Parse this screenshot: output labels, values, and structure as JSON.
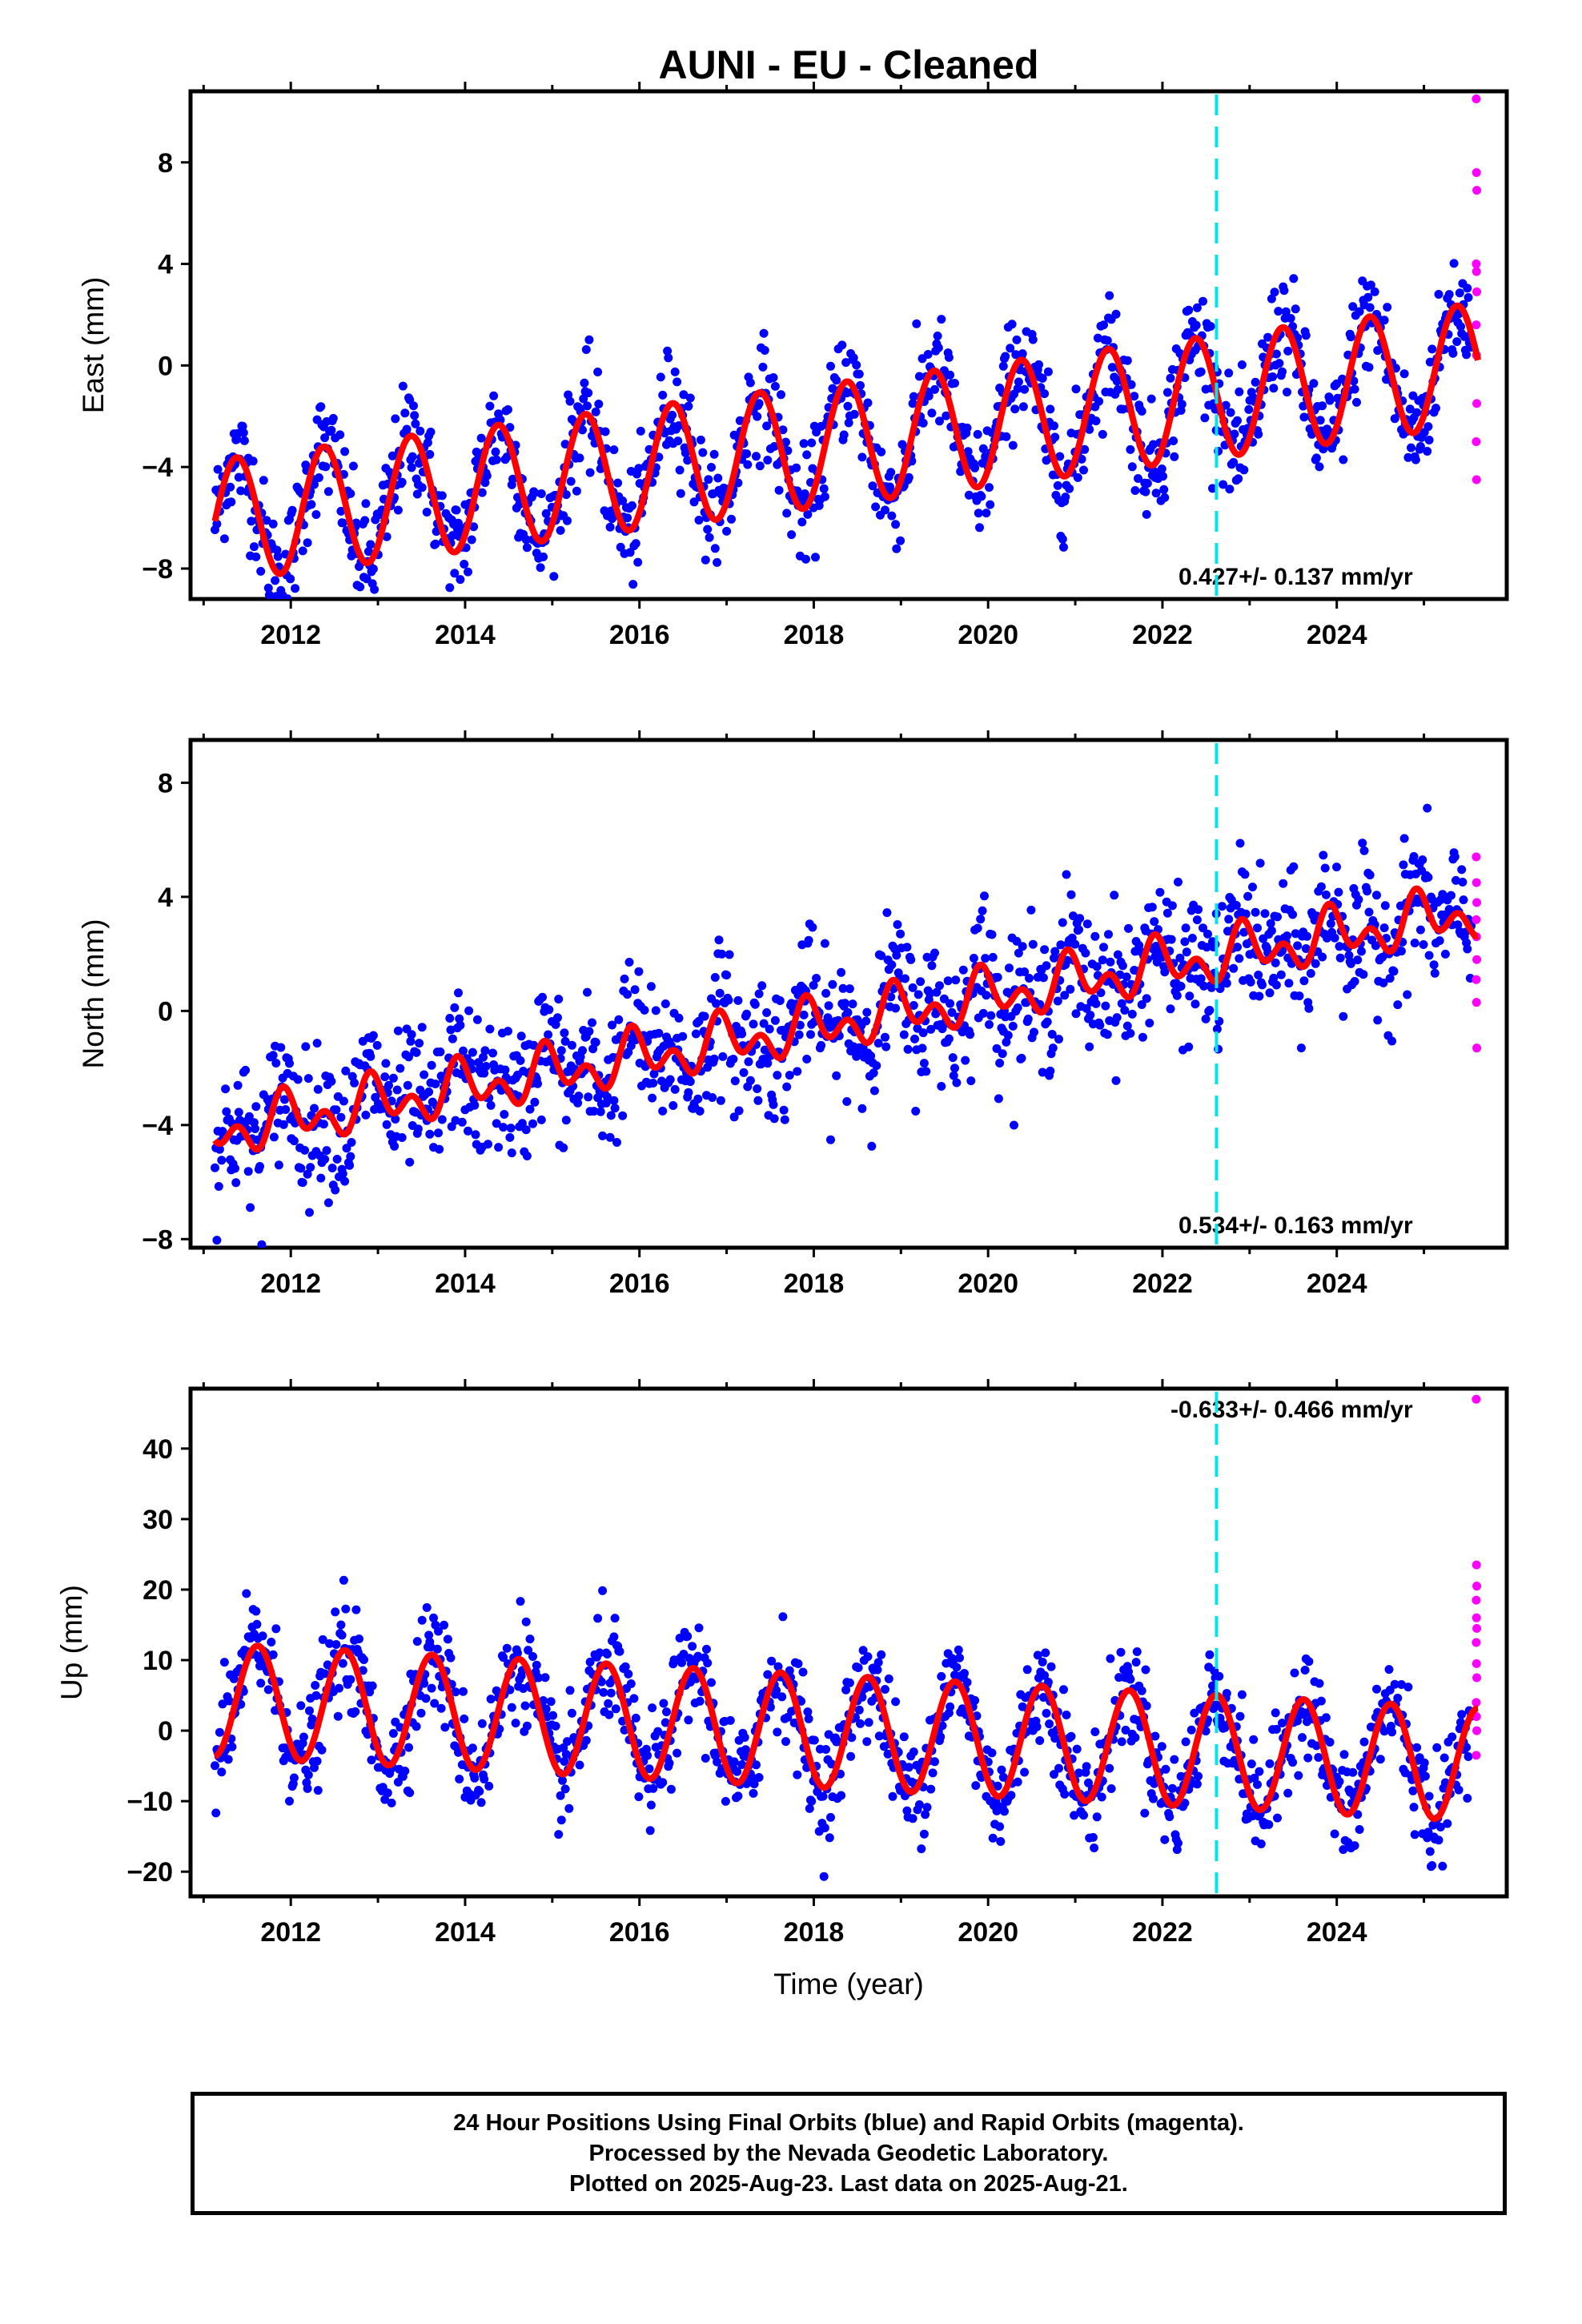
{
  "chart_data": {
    "title": "AUNI  - EU - Cleaned",
    "type": "scatter",
    "x_label": "Time (year)",
    "x_range": [
      2010.85,
      2025.95
    ],
    "x_ticks": [
      "2012",
      "2014",
      "2016",
      "2018",
      "2020",
      "2022",
      "2024"
    ],
    "event_line_year": 2022.62,
    "series_colors": {
      "final_orbits": "#0000ff",
      "rapid_orbits": "#ff00ff",
      "model_fit": "#ff0000",
      "event_line": "#00e5ee"
    },
    "panels": [
      {
        "component": "east",
        "y_label": "East (mm)",
        "y_range": [
          -9.2,
          10.8
        ],
        "y_ticks": [
          "8",
          "4",
          "0",
          "−4",
          "−8"
        ],
        "rate_label": "0.427+/- 0.137 mm/yr",
        "model": {
          "offset": -6.1,
          "trend": 0.427,
          "annual_amp": 2.4,
          "annual_peak_frac": 0.38,
          "semiannual_amp": 0.0,
          "semiannual_phase": 0.0,
          "noise_mm": 1.1
        },
        "rapid_values": [
          10.5,
          7.6,
          6.9,
          4.0,
          3.7,
          2.9,
          1.6,
          0.4,
          -1.5,
          -3.0,
          -4.5
        ]
      },
      {
        "component": "north",
        "y_label": "North (mm)",
        "y_range": [
          -8.3,
          9.5
        ],
        "y_ticks": [
          "8",
          "4",
          "0",
          "−4",
          "−8"
        ],
        "rate_label": "0.534+/- 0.163 mm/yr",
        "model": {
          "offset": -4.2,
          "trend": 0.534,
          "annual_amp": 0.6,
          "annual_peak_frac": 0.96,
          "semiannual_amp": 0.6,
          "semiannual_phase": 0.4,
          "noise_mm": 1.2
        },
        "rapid_values": [
          5.4,
          4.5,
          3.8,
          3.2,
          2.6,
          1.8,
          1.1,
          0.3,
          -1.3
        ]
      },
      {
        "component": "up",
        "y_label": "Up (mm)",
        "y_range": [
          -23.5,
          48.5
        ],
        "y_ticks": [
          "40",
          "30",
          "20",
          "10",
          "0",
          "−10",
          "−20"
        ],
        "rate_label": "-0.633+/- 0.466 mm/yr",
        "model": {
          "offset": 4.3,
          "trend": -0.633,
          "annual_amp": 8.0,
          "annual_peak_frac": 0.62,
          "semiannual_amp": 0.0,
          "semiannual_phase": 0.0,
          "noise_mm": 3.8
        },
        "rapid_values": [
          47.0,
          23.5,
          20.5,
          18.5,
          16.0,
          14.5,
          12.5,
          9.5,
          7.5,
          4.0,
          2.0,
          0.0,
          -3.5
        ]
      }
    ]
  },
  "footer": {
    "line1": "24 Hour Positions Using Final Orbits (blue) and Rapid Orbits (magenta).",
    "line2": "Processed by the Nevada Geodetic Laboratory.",
    "line3": "Plotted on 2025-Aug-23. Last data on 2025-Aug-21."
  }
}
